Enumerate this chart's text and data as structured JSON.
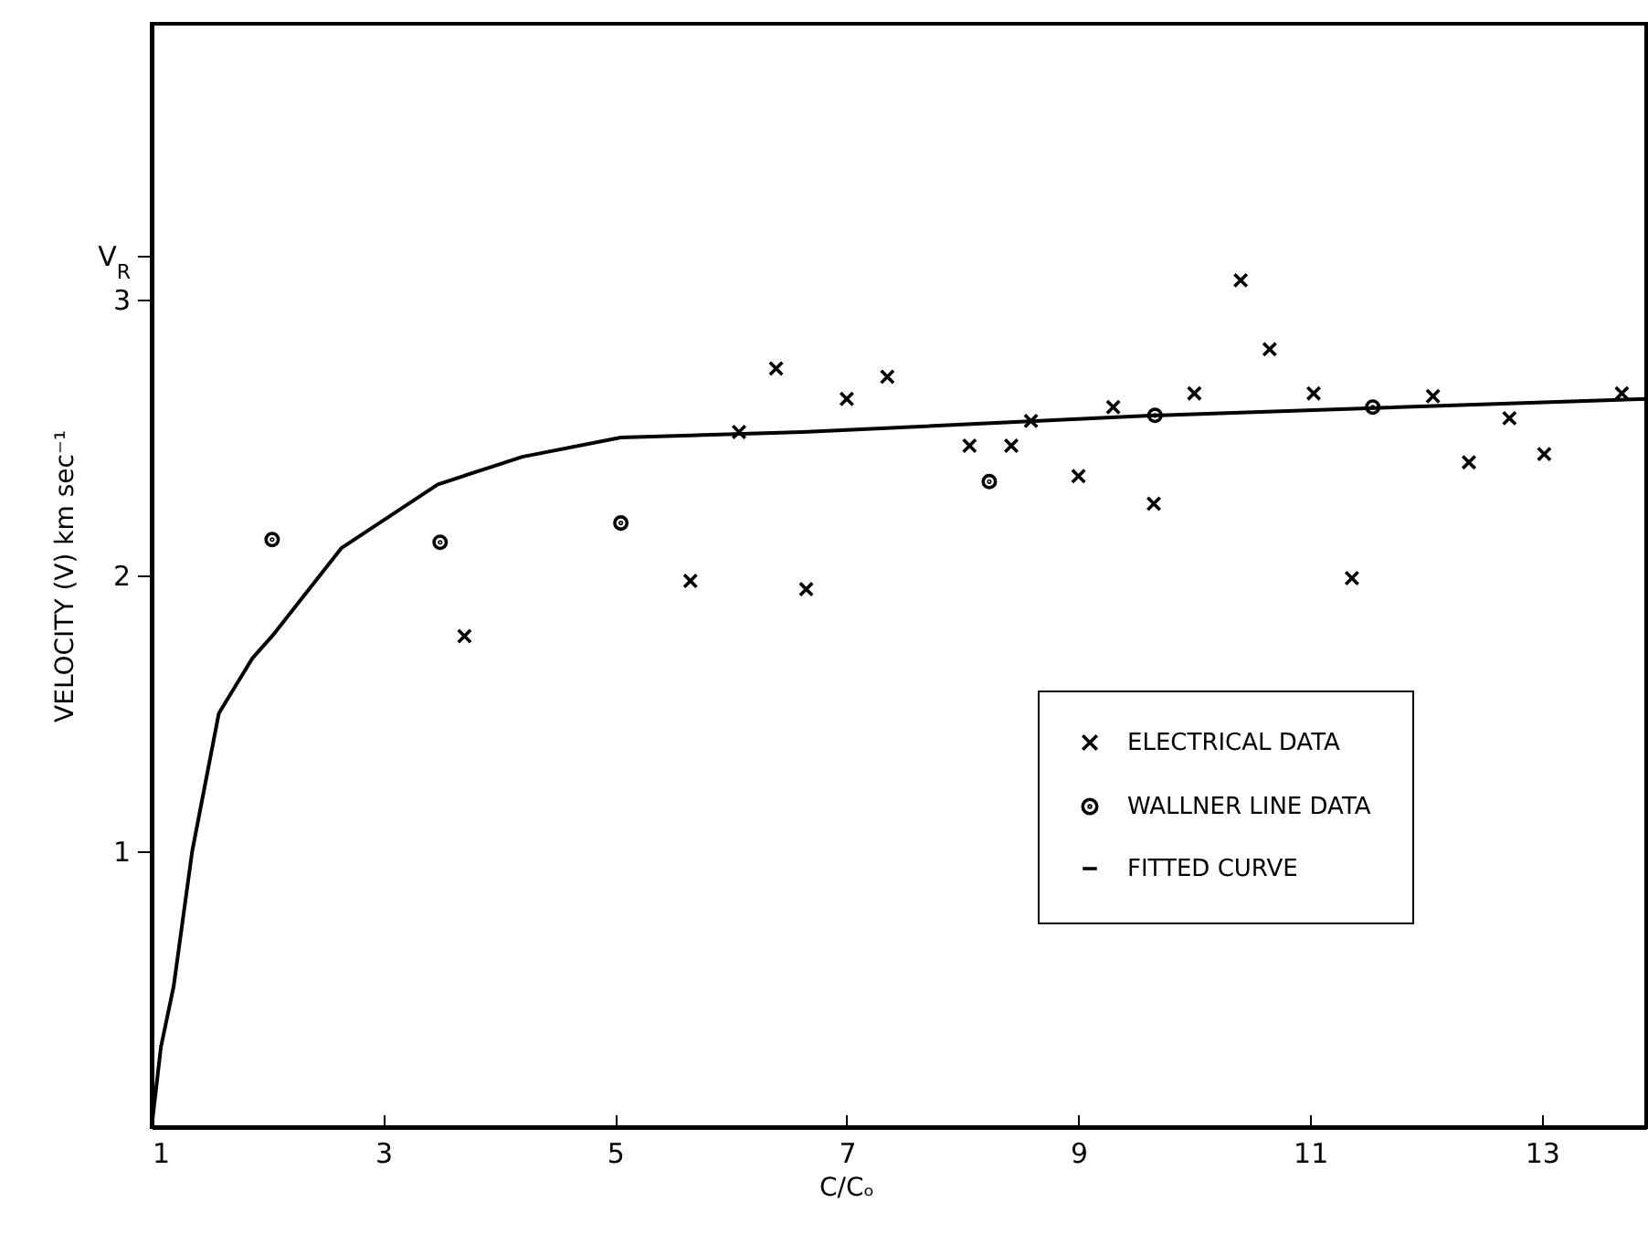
{
  "chart_data": {
    "type": "scatter",
    "xlabel": "C/Cₒ",
    "ylabel": "VELOCITY (V)  km sec⁻¹",
    "xlim": [
      1,
      13.9
    ],
    "ylim": [
      0,
      4
    ],
    "xticks": [
      1,
      3,
      5,
      7,
      9,
      11,
      13
    ],
    "yticks": [
      1,
      2,
      3,
      {
        "value": 3.16,
        "label": "V$_{R}$"
      }
    ],
    "grid": false,
    "legend": "right",
    "series": [
      {
        "name": "ELECTRICAL DATA",
        "color": "#000000",
        "marker": "cross",
        "x": [
          3.7,
          5.65,
          6.65,
          6.07,
          6.39,
          7.0,
          7.35,
          8.06,
          8.42,
          8.59,
          9.0,
          9.3,
          9.65,
          10.0,
          10.4,
          10.65,
          11.03,
          11.36,
          12.06,
          12.37,
          12.72,
          13.02,
          13.69
        ],
        "values": [
          1.78,
          1.98,
          1.95,
          2.52,
          2.75,
          2.64,
          2.72,
          2.47,
          2.47,
          2.56,
          2.36,
          2.61,
          2.26,
          2.66,
          3.07,
          2.82,
          2.66,
          1.99,
          2.65,
          2.41,
          2.57,
          2.44,
          2.66
        ]
      },
      {
        "name": "WALLNER LINE DATA",
        "color": "#000000",
        "marker": "circle",
        "x": [
          2.04,
          3.49,
          5.05,
          8.23,
          9.66,
          11.54
        ],
        "values": [
          2.13,
          2.12,
          2.19,
          2.34,
          2.58,
          2.61
        ]
      },
      {
        "name": "FITTED CURVE",
        "type": "line",
        "color": "#000000",
        "line_style": "solid",
        "x": [
          1,
          1.08,
          1.19,
          1.35,
          1.58,
          1.87,
          2.04,
          2.64,
          3.47,
          4.2,
          5.05,
          6.62,
          9.66,
          13.9
        ],
        "values": [
          0,
          0.29,
          0.51,
          1.0,
          1.5,
          1.7,
          1.78,
          2.1,
          2.33,
          2.43,
          2.5,
          2.52,
          2.58,
          2.64
        ]
      }
    ]
  }
}
